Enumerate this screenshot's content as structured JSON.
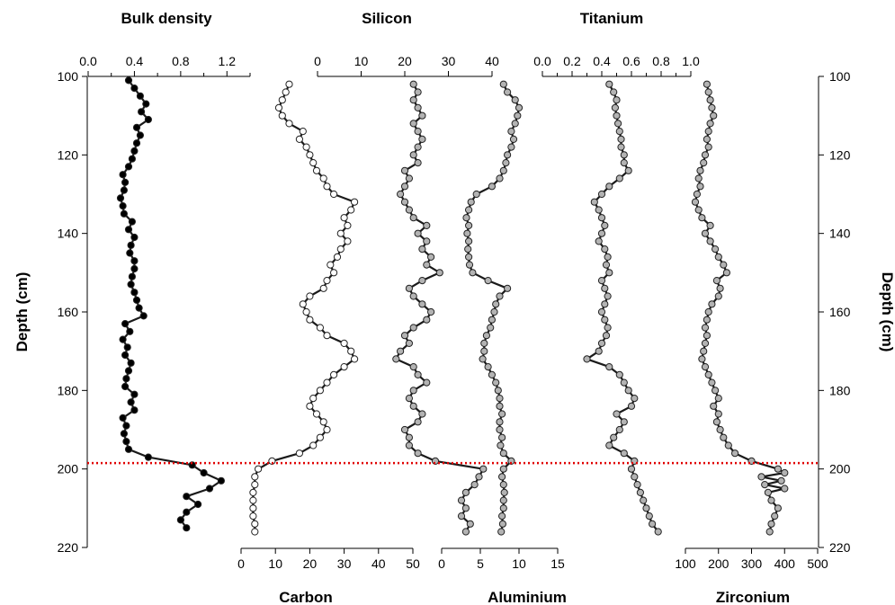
{
  "chart_data": {
    "type": "scatter",
    "depth_axis": {
      "label": "Depth (cm)",
      "ylim": [
        100,
        220
      ],
      "ticks": [
        100,
        120,
        140,
        160,
        180,
        200,
        220
      ],
      "reversed": true
    },
    "boundary": {
      "depth": 198.5,
      "color": "#e00000",
      "style": "dotted"
    },
    "panels": [
      {
        "id": "bulk",
        "title": "Bulk density",
        "axis_position": "top",
        "xlim": [
          0,
          1.4
        ],
        "ticks": [
          "0.0",
          "0.4",
          "0.8",
          "1.2"
        ],
        "tick_values": [
          0,
          0.4,
          0.8,
          1.2
        ],
        "minor_ticks": [
          0.2,
          0.6,
          1.0,
          1.4
        ],
        "marker_fill": "#000000",
        "depth": [
          101,
          103,
          105,
          107,
          109,
          111,
          113,
          115,
          117,
          119,
          121,
          123,
          125,
          127,
          129,
          131,
          133,
          135,
          137,
          139,
          141,
          143,
          145,
          147,
          149,
          151,
          153,
          155,
          157,
          159,
          161,
          163,
          165,
          167,
          169,
          171,
          173,
          175,
          177,
          179,
          181,
          183,
          185,
          187,
          189,
          191,
          193,
          195,
          197,
          199,
          201,
          203,
          205,
          207,
          209,
          211,
          213,
          215
        ],
        "values": [
          0.35,
          0.4,
          0.45,
          0.5,
          0.46,
          0.52,
          0.42,
          0.45,
          0.42,
          0.4,
          0.38,
          0.35,
          0.3,
          0.32,
          0.31,
          0.28,
          0.3,
          0.31,
          0.38,
          0.35,
          0.4,
          0.37,
          0.36,
          0.4,
          0.4,
          0.38,
          0.37,
          0.4,
          0.42,
          0.44,
          0.48,
          0.32,
          0.36,
          0.3,
          0.34,
          0.32,
          0.37,
          0.35,
          0.33,
          0.32,
          0.4,
          0.37,
          0.4,
          0.3,
          0.33,
          0.31,
          0.33,
          0.35,
          0.52,
          0.9,
          1.0,
          1.15,
          1.05,
          0.85,
          0.95,
          0.85,
          0.8,
          0.85
        ]
      },
      {
        "id": "carbon",
        "title": "Carbon",
        "axis_position": "bottom",
        "xlim": [
          0,
          50
        ],
        "ticks": [
          "0",
          "10",
          "20",
          "30",
          "40",
          "50"
        ],
        "tick_values": [
          0,
          10,
          20,
          30,
          40,
          50
        ],
        "marker_fill": "#ffffff",
        "depth": [
          102,
          104,
          106,
          108,
          110,
          112,
          114,
          116,
          118,
          120,
          122,
          124,
          126,
          128,
          130,
          132,
          134,
          136,
          138,
          140,
          142,
          144,
          146,
          148,
          150,
          152,
          154,
          156,
          158,
          160,
          162,
          164,
          166,
          168,
          170,
          172,
          174,
          176,
          178,
          180,
          182,
          184,
          186,
          188,
          190,
          192,
          194,
          196,
          198,
          200,
          202,
          204,
          206,
          208,
          210,
          212,
          214,
          216
        ],
        "values": [
          14,
          13,
          12,
          11,
          12,
          14,
          18,
          17,
          19,
          20,
          21,
          22,
          24,
          25,
          27,
          33,
          32,
          30,
          31,
          29,
          31,
          29,
          28,
          26,
          27,
          25,
          24,
          20,
          18,
          19,
          20,
          23,
          25,
          30,
          32,
          33,
          30,
          27,
          25,
          23,
          21,
          20,
          22,
          24,
          25,
          23,
          21,
          17,
          9,
          5,
          4,
          4,
          3.5,
          3.5,
          3.5,
          3.5,
          4,
          4
        ]
      },
      {
        "id": "silicon",
        "title": "Silicon",
        "axis_position": "top",
        "xlim": [
          0,
          40
        ],
        "ticks": [
          "0",
          "10",
          "20",
          "30",
          "40"
        ],
        "tick_values": [
          0,
          10,
          20,
          30,
          40
        ],
        "marker_fill": "#b3b3b3",
        "depth": [
          102,
          104,
          106,
          108,
          110,
          112,
          114,
          116,
          118,
          120,
          122,
          124,
          126,
          128,
          130,
          132,
          134,
          136,
          138,
          140,
          142,
          144,
          146,
          148,
          150,
          152,
          154,
          156,
          158,
          160,
          162,
          164,
          166,
          168,
          170,
          172,
          174,
          176,
          178,
          180,
          182,
          184,
          186,
          188,
          190,
          192,
          194,
          196,
          198,
          200,
          202,
          204,
          206,
          208,
          210,
          212,
          214,
          216
        ],
        "values": [
          22,
          23,
          22,
          23,
          24,
          22,
          23,
          24,
          23,
          22,
          23,
          20,
          21,
          20,
          19,
          20,
          21,
          22,
          25,
          23,
          25,
          24,
          26,
          25,
          28,
          24,
          21,
          22,
          24,
          26,
          25,
          22,
          20,
          21,
          19,
          18,
          22,
          23,
          25,
          22,
          21,
          22,
          24,
          23,
          20,
          21,
          21,
          23,
          27,
          38,
          37,
          36,
          34,
          33,
          34,
          33,
          35,
          34
        ]
      },
      {
        "id": "aluminium",
        "title": "Aluminium",
        "axis_position": "bottom",
        "xlim": [
          0,
          15
        ],
        "ticks": [
          "0",
          "5",
          "10",
          "15"
        ],
        "tick_values": [
          0,
          5,
          10,
          15
        ],
        "marker_fill": "#b3b3b3",
        "depth": [
          102,
          104,
          106,
          108,
          110,
          112,
          114,
          116,
          118,
          120,
          122,
          124,
          126,
          128,
          130,
          132,
          134,
          136,
          138,
          140,
          142,
          144,
          146,
          148,
          150,
          152,
          154,
          156,
          158,
          160,
          162,
          164,
          166,
          168,
          170,
          172,
          174,
          176,
          178,
          180,
          182,
          184,
          186,
          188,
          190,
          192,
          194,
          196,
          198,
          200,
          202,
          204,
          206,
          208,
          210,
          212,
          214,
          216
        ],
        "values": [
          8,
          8.5,
          9.5,
          10,
          9.8,
          9.5,
          9,
          9.3,
          9,
          8.5,
          8.3,
          8,
          7.5,
          6.5,
          4.5,
          3.8,
          3.5,
          3.2,
          3.5,
          3.3,
          3.5,
          3.4,
          3.5,
          3.6,
          4,
          6,
          8.5,
          7.5,
          7,
          6.8,
          6.5,
          6.3,
          5.8,
          5.5,
          5.5,
          5.3,
          6,
          6.5,
          7,
          7.3,
          7.5,
          7.5,
          7.8,
          7.5,
          7.5,
          7.8,
          7.6,
          8,
          9,
          8,
          7.8,
          8,
          8.1,
          8,
          8,
          7.8,
          7.9,
          7.7
        ]
      },
      {
        "id": "titanium",
        "title": "Titanium",
        "axis_position": "top",
        "xlim": [
          0,
          1
        ],
        "ticks": [
          "0.0",
          "0.2",
          "0.4",
          "0.6",
          "0.8",
          "1.0"
        ],
        "tick_values": [
          0,
          0.2,
          0.4,
          0.6,
          0.8,
          1.0
        ],
        "minor_ticks": [
          0.1,
          0.3,
          0.5,
          0.7,
          0.9
        ],
        "marker_fill": "#b3b3b3",
        "depth": [
          102,
          104,
          106,
          108,
          110,
          112,
          114,
          116,
          118,
          120,
          122,
          124,
          126,
          128,
          130,
          132,
          134,
          136,
          138,
          140,
          142,
          144,
          146,
          148,
          150,
          152,
          154,
          156,
          158,
          160,
          162,
          164,
          166,
          168,
          170,
          172,
          174,
          176,
          178,
          180,
          182,
          184,
          186,
          188,
          190,
          192,
          194,
          196,
          198,
          200,
          202,
          204,
          206,
          208,
          210,
          212,
          214,
          216
        ],
        "values": [
          0.45,
          0.48,
          0.5,
          0.49,
          0.5,
          0.51,
          0.52,
          0.53,
          0.53,
          0.55,
          0.55,
          0.58,
          0.52,
          0.45,
          0.4,
          0.35,
          0.38,
          0.4,
          0.42,
          0.4,
          0.38,
          0.42,
          0.44,
          0.43,
          0.45,
          0.4,
          0.42,
          0.44,
          0.42,
          0.4,
          0.42,
          0.44,
          0.43,
          0.4,
          0.38,
          0.3,
          0.45,
          0.52,
          0.55,
          0.58,
          0.62,
          0.6,
          0.5,
          0.55,
          0.52,
          0.48,
          0.45,
          0.55,
          0.62,
          0.6,
          0.62,
          0.64,
          0.66,
          0.68,
          0.7,
          0.72,
          0.74,
          0.78
        ]
      },
      {
        "id": "zirconium",
        "title": "Zirconium",
        "axis_position": "bottom",
        "xlim": [
          100,
          500
        ],
        "ticks": [
          "100",
          "200",
          "300",
          "400",
          "500"
        ],
        "tick_values": [
          100,
          200,
          300,
          400,
          500
        ],
        "marker_fill": "#b3b3b3",
        "depth": [
          102,
          104,
          106,
          108,
          110,
          112,
          114,
          116,
          118,
          120,
          122,
          124,
          126,
          128,
          130,
          132,
          134,
          136,
          138,
          140,
          142,
          144,
          146,
          148,
          150,
          152,
          154,
          156,
          158,
          160,
          162,
          164,
          166,
          168,
          170,
          172,
          174,
          176,
          178,
          180,
          182,
          184,
          186,
          188,
          190,
          192,
          194,
          196,
          198,
          200,
          201,
          202,
          203,
          204,
          205,
          206,
          208,
          210,
          212,
          214,
          216
        ],
        "values": [
          165,
          170,
          175,
          180,
          185,
          175,
          170,
          165,
          170,
          160,
          155,
          145,
          140,
          145,
          135,
          130,
          140,
          150,
          175,
          160,
          175,
          190,
          200,
          215,
          225,
          195,
          205,
          200,
          180,
          170,
          165,
          160,
          165,
          160,
          155,
          150,
          160,
          170,
          180,
          190,
          200,
          185,
          200,
          195,
          205,
          215,
          230,
          250,
          300,
          380,
          400,
          330,
          390,
          340,
          400,
          350,
          360,
          380,
          370,
          360,
          355
        ]
      }
    ]
  }
}
